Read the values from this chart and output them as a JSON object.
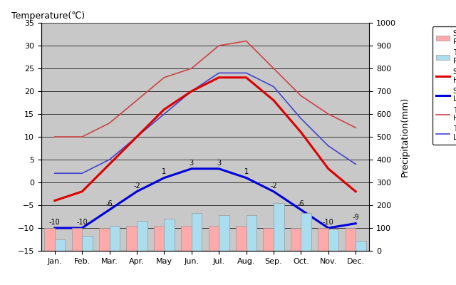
{
  "months": [
    "Jan.",
    "Feb.",
    "Mar.",
    "Apr.",
    "May",
    "Jun.",
    "Jul.",
    "Aug.",
    "Sep.",
    "Oct.",
    "Nov.",
    "Dec."
  ],
  "saalfelden_high": [
    -4,
    -2,
    4,
    10,
    16,
    20,
    23,
    23,
    18,
    11,
    3,
    -2
  ],
  "saalfelden_low": [
    -10,
    -10,
    -6,
    -2,
    1,
    3,
    3,
    1,
    -2,
    -6,
    -10,
    -9
  ],
  "tokyo_high": [
    10,
    10,
    13,
    18,
    23,
    25,
    30,
    31,
    25,
    19,
    15,
    12
  ],
  "tokyo_low": [
    2,
    2,
    5,
    10,
    15,
    20,
    24,
    24,
    21,
    14,
    8,
    4
  ],
  "saalfelden_precip": [
    100,
    100,
    100,
    110,
    110,
    110,
    110,
    110,
    100,
    100,
    100,
    100
  ],
  "tokyo_precip": [
    50,
    65,
    110,
    130,
    140,
    165,
    155,
    155,
    210,
    165,
    95,
    45
  ],
  "temp_ylim": [
    -15,
    35
  ],
  "precip_ylim": [
    0,
    1000
  ],
  "temp_yticks": [
    -15,
    -10,
    -5,
    0,
    5,
    10,
    15,
    20,
    25,
    30,
    35
  ],
  "precip_yticks": [
    0,
    100,
    200,
    300,
    400,
    500,
    600,
    700,
    800,
    900,
    1000
  ],
  "saalfelden_high_color": "#dd0000",
  "saalfelden_low_color": "#0000dd",
  "tokyo_high_color": "#cc4444",
  "tokyo_low_color": "#4444cc",
  "saalfelden_precip_color": "#ffaaaa",
  "tokyo_precip_color": "#aaddee",
  "background_color": "#c8c8c8",
  "plot_bg_color": "#c8c8c8",
  "title_temp": "Temperature(℃)",
  "title_precip": "Precipitation(mm)",
  "low_labels": [
    -10,
    -10,
    -6,
    -2,
    1,
    3,
    3,
    1,
    -2,
    -6,
    -10,
    -9
  ]
}
